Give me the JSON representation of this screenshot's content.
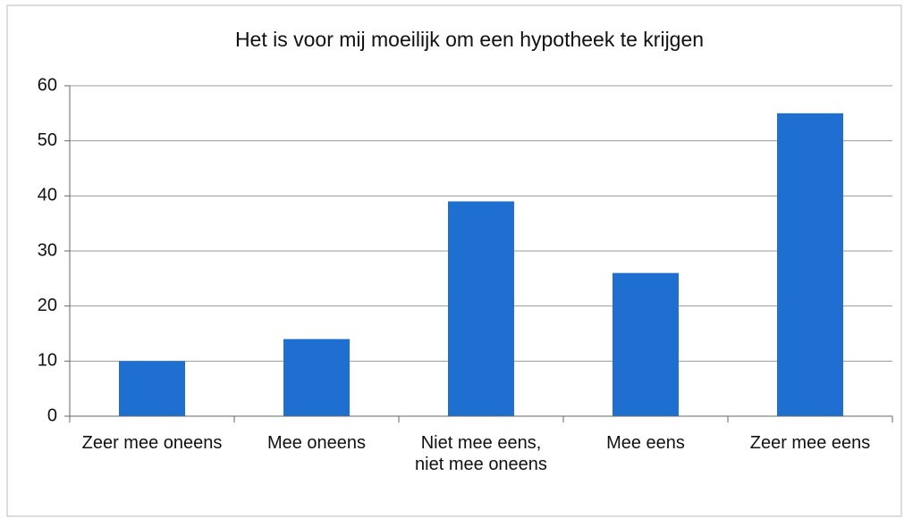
{
  "chart_data": {
    "type": "bar",
    "title": "Het is voor mij moeilijk om een hypotheek te krijgen",
    "categories": [
      "Zeer mee oneens",
      "Mee oneens",
      "Niet mee eens, niet mee oneens",
      "Mee eens",
      "Zeer mee eens"
    ],
    "values": [
      10,
      14,
      39,
      26,
      55
    ],
    "color": "#1e6fcf",
    "ylim": [
      0,
      60
    ],
    "yticks": [
      0,
      10,
      20,
      30,
      40,
      50,
      60
    ],
    "grid": true
  }
}
